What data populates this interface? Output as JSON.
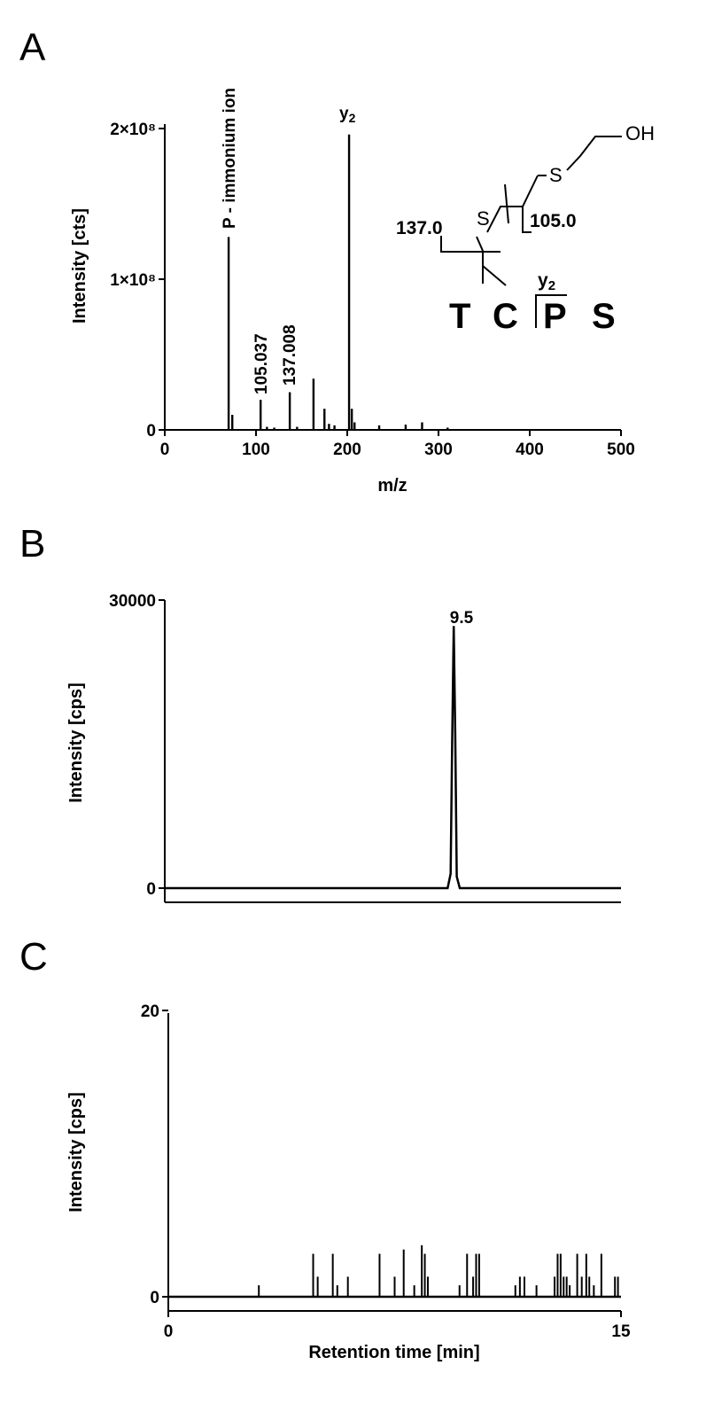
{
  "chart_data": [
    {
      "panel": "A",
      "type": "bar",
      "xlabel": "m/z",
      "ylabel": "Intensity [cts]",
      "xlim": [
        0,
        500
      ],
      "ylim": [
        0,
        200000000
      ],
      "x_ticks": [
        "0",
        "100",
        "200",
        "300",
        "400",
        "500"
      ],
      "y_ticks": [
        "0",
        "1×10⁸",
        "2×10⁸"
      ],
      "peaks": [
        {
          "x": 70,
          "y": 128000000
        },
        {
          "x": 74,
          "y": 10000000
        },
        {
          "x": 105.037,
          "y": 20000000
        },
        {
          "x": 112,
          "y": 2000000
        },
        {
          "x": 120,
          "y": 1500000
        },
        {
          "x": 137.008,
          "y": 25000000
        },
        {
          "x": 145,
          "y": 2000000
        },
        {
          "x": 163,
          "y": 34000000
        },
        {
          "x": 175,
          "y": 14000000
        },
        {
          "x": 180,
          "y": 4000000
        },
        {
          "x": 186,
          "y": 3000000
        },
        {
          "x": 202,
          "y": 196000000
        },
        {
          "x": 205,
          "y": 14000000
        },
        {
          "x": 208,
          "y": 5000000
        },
        {
          "x": 235,
          "y": 3000000
        },
        {
          "x": 264,
          "y": 3500000
        },
        {
          "x": 282,
          "y": 5000000
        },
        {
          "x": 310,
          "y": 1500000
        }
      ],
      "annotations": [
        {
          "text": "P - immonium ion",
          "x": 70
        },
        {
          "text": "105.037",
          "x": 105.037
        },
        {
          "text": "137.008",
          "x": 137.008
        },
        {
          "text": "y",
          "sub": "2",
          "x": 202
        }
      ],
      "inset": {
        "peptide": [
          "T",
          "C",
          "P",
          "S"
        ],
        "fragment_labels": [
          "137.0",
          "105.0"
        ],
        "cleavage_label": {
          "text": "y",
          "sub": "2"
        },
        "chem_labels": [
          "S",
          "S",
          "OH"
        ]
      }
    },
    {
      "panel": "B",
      "type": "line",
      "ylabel": "Intensity [cps]",
      "xlim": [
        0,
        15
      ],
      "ylim": [
        0,
        30000
      ],
      "y_ticks": [
        "0",
        "30000"
      ],
      "peak_label": "9.5",
      "x": [
        0,
        9.3,
        9.4,
        9.45,
        9.5,
        9.55,
        9.6,
        9.7,
        10.0,
        15
      ],
      "y": [
        0,
        0,
        1500,
        15000,
        27300,
        16000,
        1200,
        0,
        0,
        0
      ]
    },
    {
      "panel": "C",
      "type": "bar",
      "xlabel": "Retention time [min]",
      "ylabel": "Intensity [cps]",
      "xlim": [
        0,
        15
      ],
      "ylim": [
        0,
        20
      ],
      "x_ticks": [
        "0",
        "15"
      ],
      "y_ticks": [
        "0",
        "20"
      ],
      "spikes": [
        {
          "x": 3.0,
          "y": 0.8
        },
        {
          "x": 4.8,
          "y": 3.0
        },
        {
          "x": 4.95,
          "y": 1.4
        },
        {
          "x": 5.45,
          "y": 3.0
        },
        {
          "x": 5.6,
          "y": 0.8
        },
        {
          "x": 5.95,
          "y": 1.4
        },
        {
          "x": 7.0,
          "y": 3.0
        },
        {
          "x": 7.5,
          "y": 1.4
        },
        {
          "x": 7.8,
          "y": 3.3
        },
        {
          "x": 8.15,
          "y": 0.8
        },
        {
          "x": 8.4,
          "y": 3.6
        },
        {
          "x": 8.5,
          "y": 3.0
        },
        {
          "x": 8.6,
          "y": 1.4
        },
        {
          "x": 9.65,
          "y": 0.8
        },
        {
          "x": 9.9,
          "y": 3.0
        },
        {
          "x": 10.1,
          "y": 1.4
        },
        {
          "x": 10.2,
          "y": 3.0
        },
        {
          "x": 10.3,
          "y": 3.0
        },
        {
          "x": 11.5,
          "y": 0.8
        },
        {
          "x": 11.65,
          "y": 1.4
        },
        {
          "x": 11.8,
          "y": 1.4
        },
        {
          "x": 12.2,
          "y": 0.8
        },
        {
          "x": 12.8,
          "y": 1.4
        },
        {
          "x": 12.9,
          "y": 3.0
        },
        {
          "x": 13.0,
          "y": 3.0
        },
        {
          "x": 13.1,
          "y": 1.4
        },
        {
          "x": 13.2,
          "y": 1.4
        },
        {
          "x": 13.3,
          "y": 0.8
        },
        {
          "x": 13.55,
          "y": 3.0
        },
        {
          "x": 13.7,
          "y": 1.4
        },
        {
          "x": 13.85,
          "y": 3.0
        },
        {
          "x": 13.95,
          "y": 1.4
        },
        {
          "x": 14.1,
          "y": 0.8
        },
        {
          "x": 14.35,
          "y": 3.0
        },
        {
          "x": 14.8,
          "y": 1.4
        },
        {
          "x": 14.9,
          "y": 1.4
        }
      ]
    }
  ],
  "panel_letters": [
    "A",
    "B",
    "C"
  ]
}
